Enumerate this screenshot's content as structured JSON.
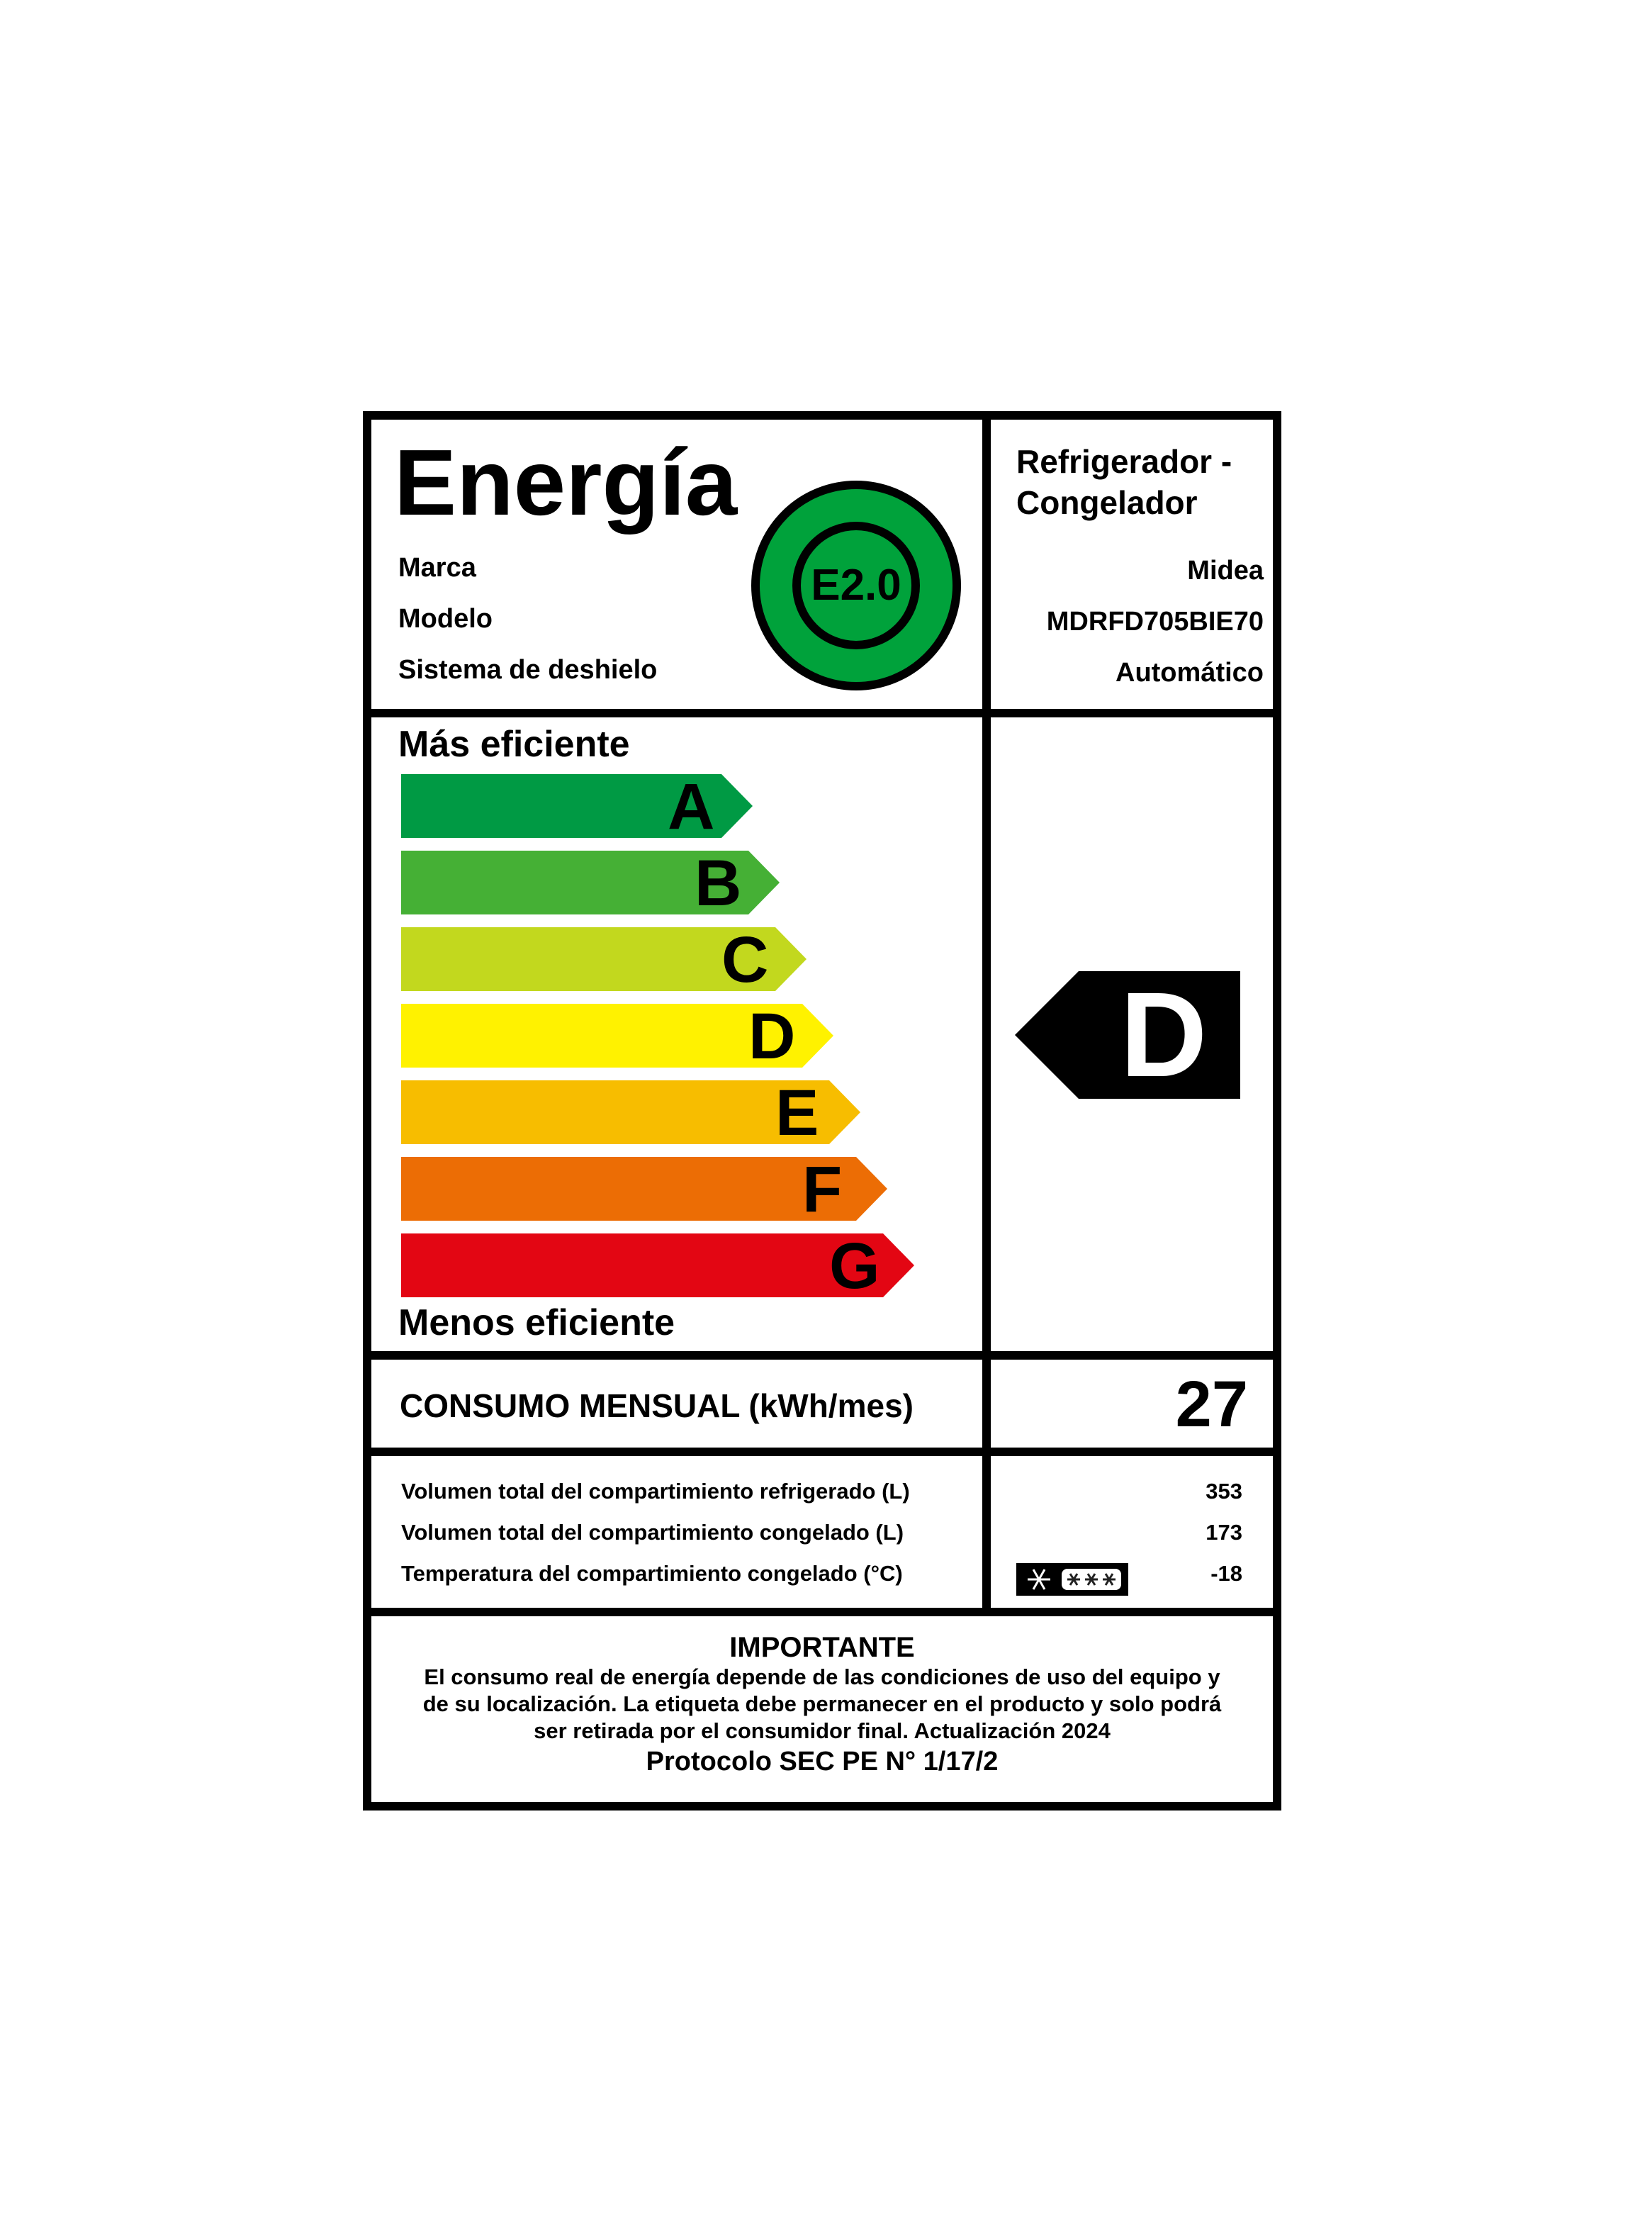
{
  "header": {
    "title": "Energía",
    "badge": "E2.0",
    "product_type_line1": "Refrigerador -",
    "product_type_line2": "Congelador",
    "fields": [
      {
        "label": "Marca",
        "value": "Midea"
      },
      {
        "label": "Modelo",
        "value": "MDRFD705BIE70"
      },
      {
        "label": "Sistema de deshielo",
        "value": "Automático"
      }
    ],
    "badge_color": "#00A23B"
  },
  "scale": {
    "top_label": "Más eficiente",
    "bottom_label": "Menos eficiente",
    "classes": [
      {
        "letter": "A",
        "color": "#009A44"
      },
      {
        "letter": "B",
        "color": "#45B035"
      },
      {
        "letter": "C",
        "color": "#C2D81E"
      },
      {
        "letter": "D",
        "color": "#FFF200"
      },
      {
        "letter": "E",
        "color": "#F7BD00"
      },
      {
        "letter": "F",
        "color": "#EC6D05"
      },
      {
        "letter": "G",
        "color": "#E30613"
      }
    ],
    "rating": "D"
  },
  "consumption": {
    "label": "CONSUMO MENSUAL (kWh/mes)",
    "value": "27"
  },
  "specs": [
    {
      "label": "Volumen total del compartimiento refrigerado (L)",
      "value": "353"
    },
    {
      "label": "Volumen total del compartimiento congelado (L)",
      "value": "173"
    },
    {
      "label": "Temperatura del compartimiento congelado (°C)",
      "value": "-18",
      "icon": "four-star-freezer-icon"
    }
  ],
  "notice": {
    "title": "IMPORTANTE",
    "lines": [
      "El consumo real de energía depende de las condiciones de uso del equipo y",
      "de su localización. La etiqueta debe permanecer en el producto y solo podrá",
      "ser retirada por el consumidor final. Actualización 2024"
    ],
    "protocol": "Protocolo SEC PE N° 1/17/2"
  }
}
